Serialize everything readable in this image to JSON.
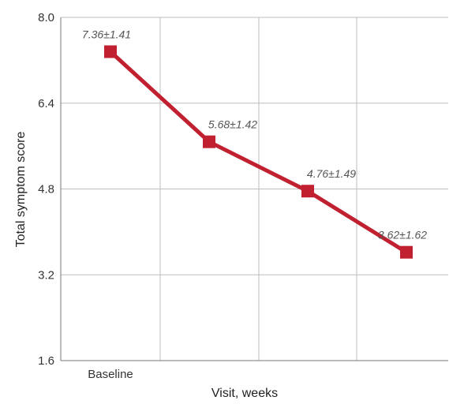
{
  "chart_data": {
    "type": "line",
    "title": "",
    "xlabel": "Visit, weeks",
    "ylabel": "Total symptom score",
    "categories": [
      "Baseline",
      "",
      "",
      ""
    ],
    "series": [
      {
        "values": [
          7.36,
          5.68,
          4.76,
          3.62
        ],
        "labels": [
          "7.36±1.41",
          "5.68±1.42",
          "4.76±1.49",
          "3.62±1.62"
        ]
      }
    ],
    "yticks": [
      "1.6",
      "3.2",
      "4.8",
      "6.4",
      "8.0"
    ],
    "ylim": [
      1.6,
      8.0
    ],
    "grid": true,
    "colors": {
      "series": "#c0202f",
      "grid": "#bdbdbd",
      "axis": "#777777"
    }
  }
}
